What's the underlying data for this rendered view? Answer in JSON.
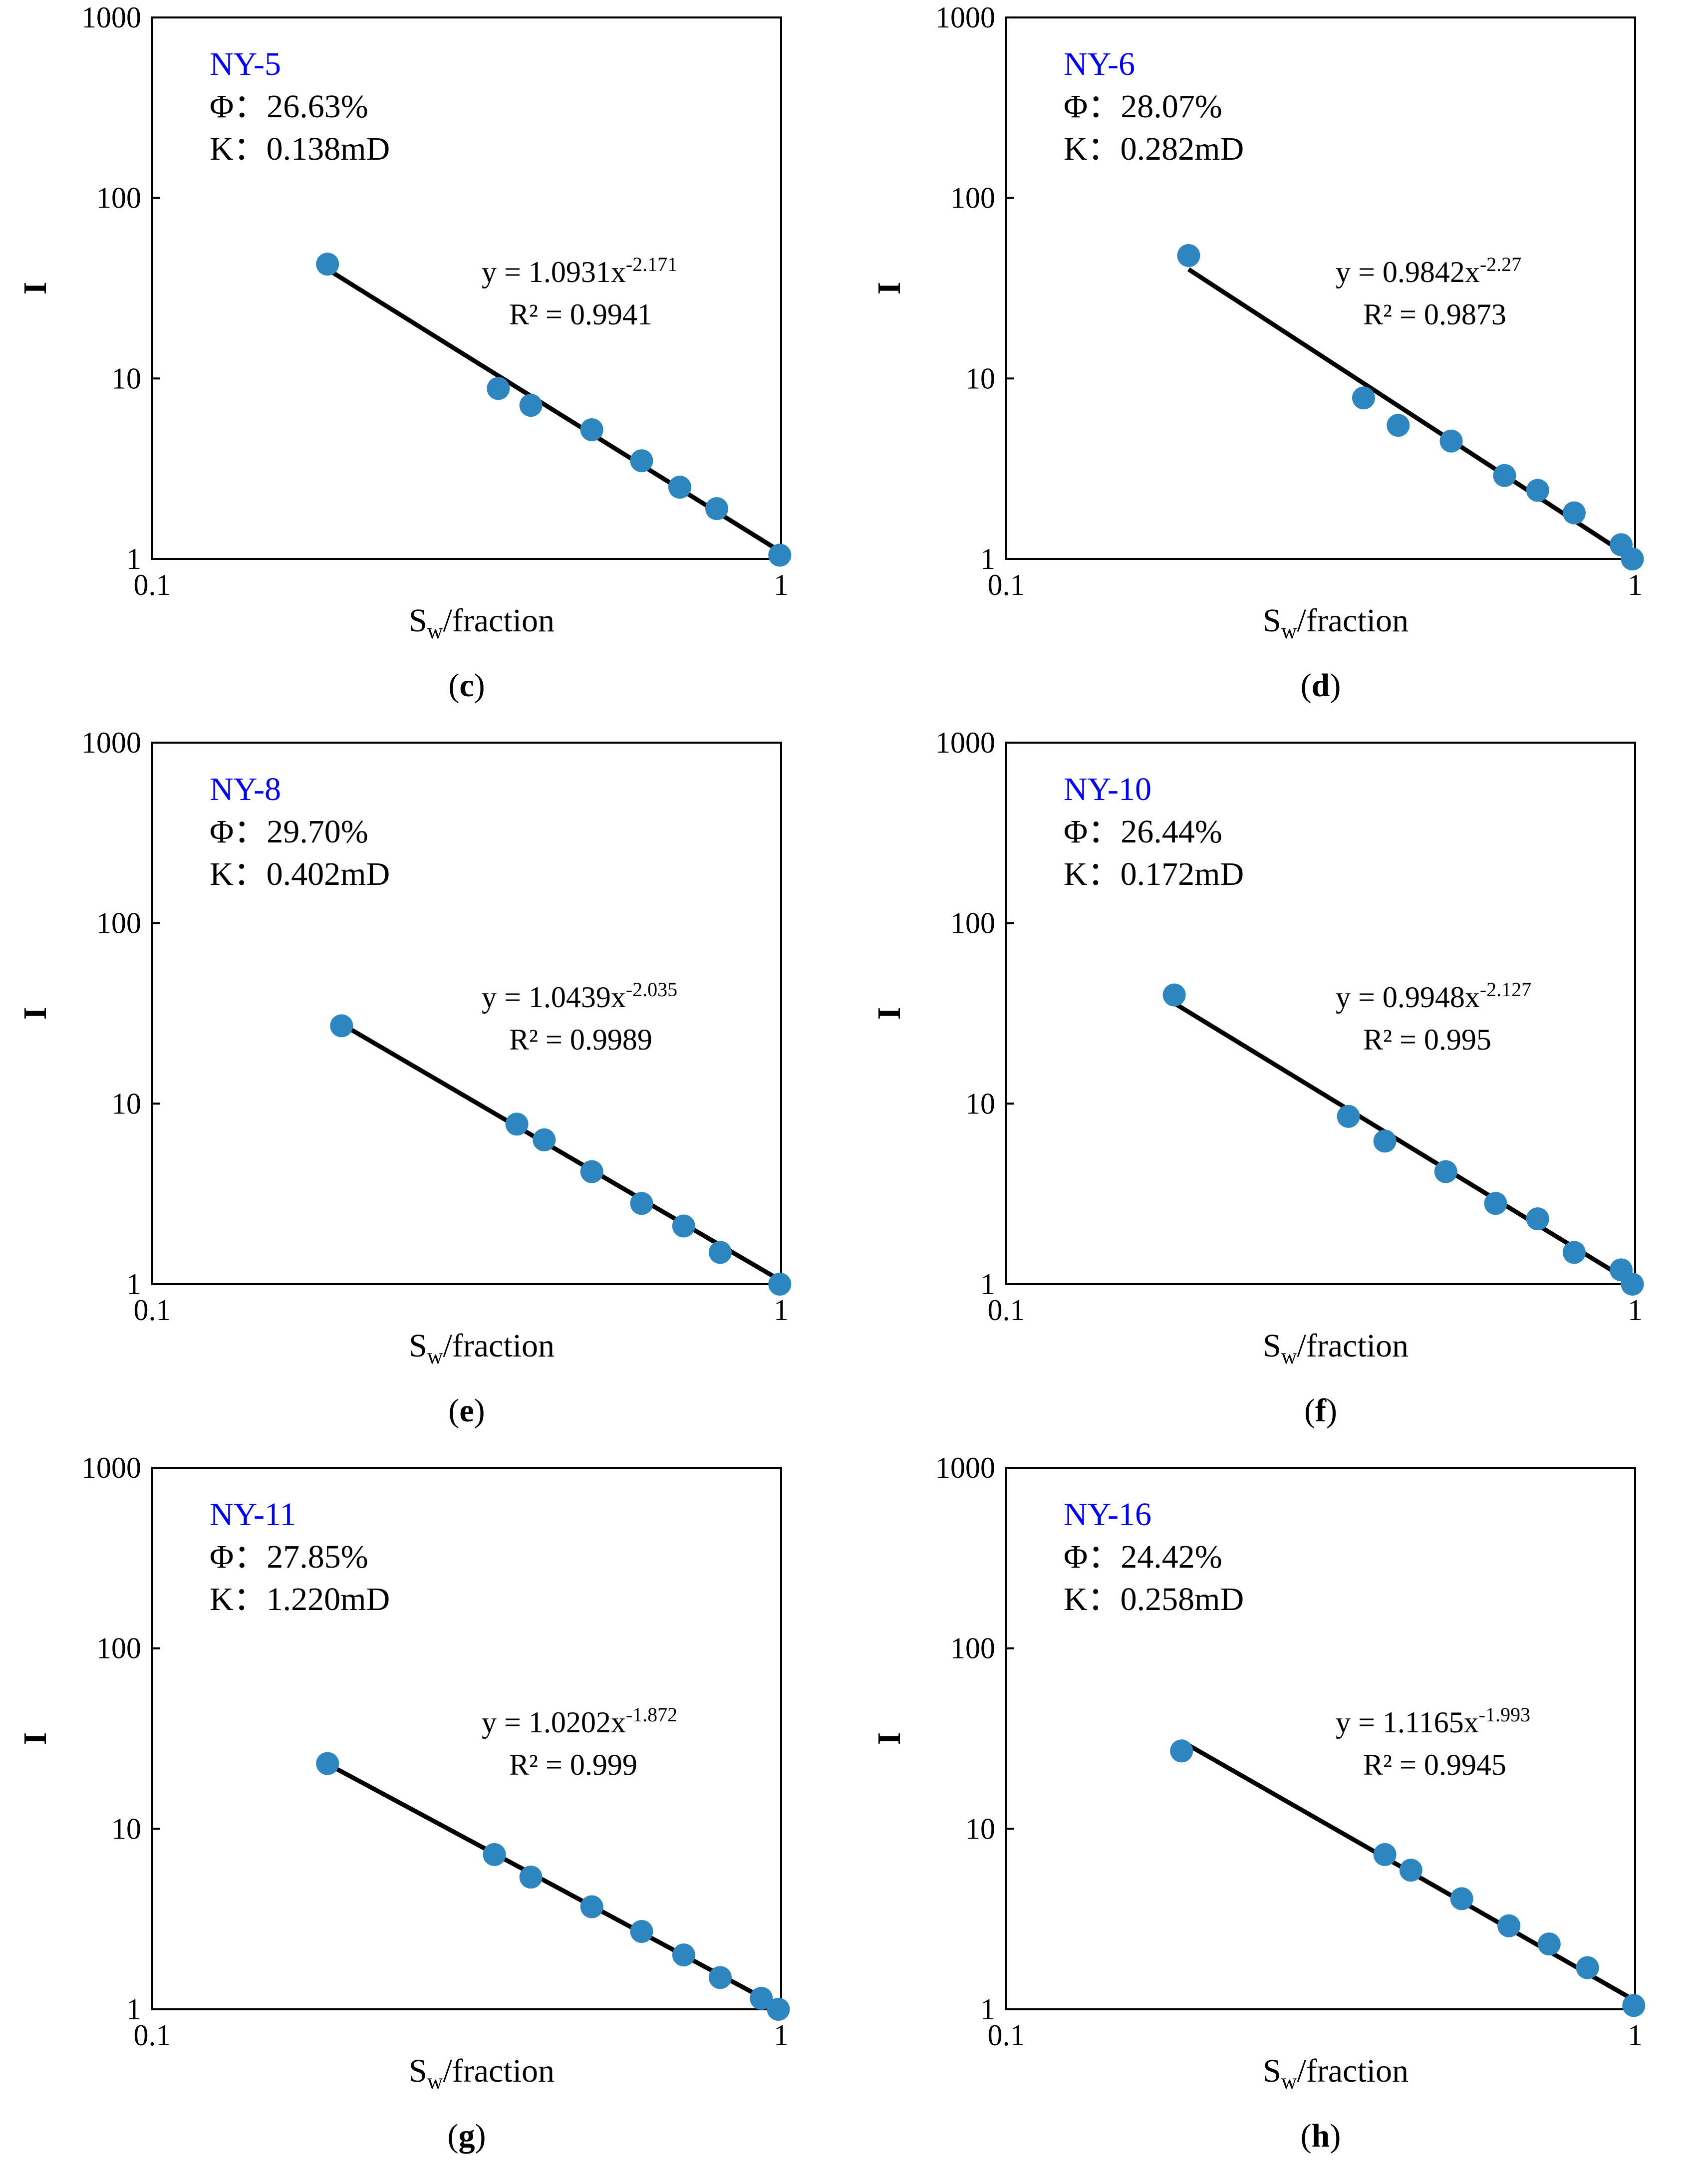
{
  "style": {
    "point_color": "#2E86C1",
    "line_color": "#000000",
    "sample_color": "#0000FF"
  },
  "chart_data": [
    {
      "type": "scatter",
      "scale": "log-log",
      "panel": "c",
      "sample": "NY-5",
      "porosity_label": "Φ：",
      "porosity": "26.63%",
      "perm_label": "K：",
      "permeability": "0.138mD",
      "xlabel_main": "S",
      "xlabel_sub": "w",
      "xlabel_rest": "/fraction",
      "ylabel": "I",
      "xlim": [
        0.1,
        1
      ],
      "ylim": [
        1,
        1000
      ],
      "x_ticks": [
        "0.1",
        "1"
      ],
      "y_ticks": [
        "1",
        "10",
        "100",
        "1000"
      ],
      "x": [
        0.19,
        0.355,
        0.4,
        0.5,
        0.6,
        0.69,
        0.79,
        0.995
      ],
      "y": [
        43,
        8.8,
        7.1,
        5.2,
        3.5,
        2.5,
        1.9,
        1.05
      ],
      "fit": {
        "a": 1.0931,
        "b": -2.171,
        "x_start": 0.19,
        "x_end": 1.0
      },
      "eq_text": "y = 1.0931x",
      "eq_exp": "-2.171",
      "r2_text": "R² = 0.9941"
    },
    {
      "type": "scatter",
      "scale": "log-log",
      "panel": "d",
      "sample": "NY-6",
      "porosity_label": "Φ：",
      "porosity": "28.07%",
      "perm_label": "K：",
      "permeability": "0.282mD",
      "xlabel_main": "S",
      "xlabel_sub": "w",
      "xlabel_rest": "/fraction",
      "ylabel": "I",
      "xlim": [
        0.1,
        1
      ],
      "ylim": [
        1,
        1000
      ],
      "x_ticks": [
        "0.1",
        "1"
      ],
      "y_ticks": [
        "1",
        "10",
        "100",
        "1000"
      ],
      "x": [
        0.195,
        0.37,
        0.42,
        0.51,
        0.62,
        0.7,
        0.8,
        0.95,
        0.99
      ],
      "y": [
        48,
        7.8,
        5.5,
        4.5,
        2.9,
        2.4,
        1.8,
        1.2,
        1.0
      ],
      "fit": {
        "a": 0.9842,
        "b": -2.27,
        "x_start": 0.195,
        "x_end": 0.99
      },
      "eq_text": "y = 0.9842x",
      "eq_exp": "-2.27",
      "r2_text": "R² = 0.9873"
    },
    {
      "type": "scatter",
      "scale": "log-log",
      "panel": "e",
      "sample": "NY-8",
      "porosity_label": "Φ：",
      "porosity": "29.70%",
      "perm_label": "K：",
      "permeability": "0.402mD",
      "xlabel_main": "S",
      "xlabel_sub": "w",
      "xlabel_rest": "/fraction",
      "ylabel": "I",
      "xlim": [
        0.1,
        1
      ],
      "ylim": [
        1,
        1000
      ],
      "x_ticks": [
        "0.1",
        "1"
      ],
      "y_ticks": [
        "1",
        "10",
        "100",
        "1000"
      ],
      "x": [
        0.2,
        0.38,
        0.42,
        0.5,
        0.6,
        0.7,
        0.8,
        0.995
      ],
      "y": [
        27,
        7.7,
        6.3,
        4.2,
        2.8,
        2.1,
        1.5,
        1.0
      ],
      "fit": {
        "a": 1.0439,
        "b": -2.035,
        "x_start": 0.2,
        "x_end": 1.0
      },
      "eq_text": "y = 1.0439x",
      "eq_exp": "-2.035",
      "r2_text": "R² = 0.9989"
    },
    {
      "type": "scatter",
      "scale": "log-log",
      "panel": "f",
      "sample": "NY-10",
      "porosity_label": "Φ：",
      "porosity": "26.44%",
      "perm_label": "K：",
      "permeability": "0.172mD",
      "xlabel_main": "S",
      "xlabel_sub": "w",
      "xlabel_rest": "/fraction",
      "ylabel": "I",
      "xlim": [
        0.1,
        1
      ],
      "ylim": [
        1,
        1000
      ],
      "x_ticks": [
        "0.1",
        "1"
      ],
      "y_ticks": [
        "1",
        "10",
        "100",
        "1000"
      ],
      "x": [
        0.185,
        0.35,
        0.4,
        0.5,
        0.6,
        0.7,
        0.8,
        0.95,
        0.99
      ],
      "y": [
        40,
        8.5,
        6.2,
        4.2,
        2.8,
        2.3,
        1.5,
        1.2,
        1.0
      ],
      "fit": {
        "a": 0.9948,
        "b": -2.127,
        "x_start": 0.185,
        "x_end": 0.99
      },
      "eq_text": "y = 0.9948x",
      "eq_exp": "-2.127",
      "r2_text": "R² = 0.995"
    },
    {
      "type": "scatter",
      "scale": "log-log",
      "panel": "g",
      "sample": "NY-11",
      "porosity_label": "Φ：",
      "porosity": "27.85%",
      "perm_label": "K：",
      "permeability": "1.220mD",
      "xlabel_main": "S",
      "xlabel_sub": "w",
      "xlabel_rest": "/fraction",
      "ylabel": "I",
      "xlim": [
        0.1,
        1
      ],
      "ylim": [
        1,
        1000
      ],
      "x_ticks": [
        "0.1",
        "1"
      ],
      "y_ticks": [
        "1",
        "10",
        "100",
        "1000"
      ],
      "x": [
        0.19,
        0.35,
        0.4,
        0.5,
        0.6,
        0.7,
        0.8,
        0.93,
        0.99
      ],
      "y": [
        23,
        7.2,
        5.4,
        3.7,
        2.7,
        2.0,
        1.5,
        1.15,
        1.0
      ],
      "fit": {
        "a": 1.0202,
        "b": -1.872,
        "x_start": 0.19,
        "x_end": 0.99
      },
      "eq_text": "y = 1.0202x",
      "eq_exp": "-1.872",
      "r2_text": "R² = 0.999"
    },
    {
      "type": "scatter",
      "scale": "log-log",
      "panel": "h",
      "sample": "NY-16",
      "porosity_label": "Φ：",
      "porosity": "24.42%",
      "perm_label": "K：",
      "permeability": "0.258mD",
      "xlabel_main": "S",
      "xlabel_sub": "w",
      "xlabel_rest": "/fraction",
      "ylabel": "I",
      "xlim": [
        0.1,
        1
      ],
      "ylim": [
        1,
        1000
      ],
      "x_ticks": [
        "0.1",
        "1"
      ],
      "y_ticks": [
        "1",
        "10",
        "100",
        "1000"
      ],
      "x": [
        0.19,
        0.4,
        0.44,
        0.53,
        0.63,
        0.73,
        0.84,
        0.995
      ],
      "y": [
        27,
        7.2,
        5.9,
        4.1,
        2.9,
        2.3,
        1.7,
        1.05
      ],
      "fit": {
        "a": 1.1165,
        "b": -1.993,
        "x_start": 0.19,
        "x_end": 1.0
      },
      "eq_text": "y = 1.1165x",
      "eq_exp": "-1.993",
      "r2_text": "R² = 0.9945"
    }
  ]
}
